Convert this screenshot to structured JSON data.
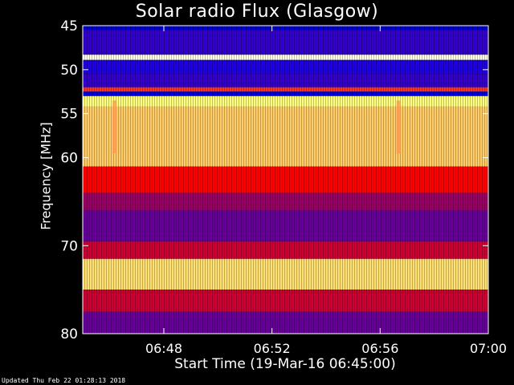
{
  "chart_data": {
    "type": "heatmap",
    "title": "Solar radio Flux (Glasgow)",
    "ylabel": "Frequency [MHz]",
    "xlabel": "Start Time (19-Mar-16 06:45:00)",
    "footer": "Updated Thu Feb 22 01:28:13 2018",
    "x_range": [
      "06:45",
      "07:00"
    ],
    "y_range": [
      45,
      80
    ],
    "y_reversed": true,
    "x_ticks": [
      "06:48",
      "06:52",
      "06:56",
      "07:00"
    ],
    "y_ticks": [
      45,
      50,
      55,
      60,
      70,
      80
    ],
    "colormap": [
      "#000080",
      "#0000ff",
      "#ff0000",
      "#ffff80",
      "#ffffff"
    ],
    "bands": [
      {
        "from": 45.0,
        "to": 45.5,
        "level": 0.15
      },
      {
        "from": 45.5,
        "to": 48.3,
        "level": 0.3
      },
      {
        "from": 48.3,
        "to": 48.9,
        "level": 0.95
      },
      {
        "from": 48.9,
        "to": 50.5,
        "level": 0.28
      },
      {
        "from": 50.5,
        "to": 52.0,
        "level": 0.3
      },
      {
        "from": 52.0,
        "to": 52.5,
        "level": 0.55
      },
      {
        "from": 52.5,
        "to": 53.0,
        "level": 0.2
      },
      {
        "from": 53.0,
        "to": 54.2,
        "level": 0.75
      },
      {
        "from": 54.2,
        "to": 61.0,
        "level": 0.7
      },
      {
        "from": 61.0,
        "to": 64.0,
        "level": 0.5
      },
      {
        "from": 64.0,
        "to": 66.0,
        "level": 0.4
      },
      {
        "from": 66.0,
        "to": 69.5,
        "level": 0.35
      },
      {
        "from": 69.5,
        "to": 71.5,
        "level": 0.45
      },
      {
        "from": 71.5,
        "to": 75.0,
        "level": 0.72
      },
      {
        "from": 75.0,
        "to": 77.5,
        "level": 0.45
      },
      {
        "from": 77.5,
        "to": 80.0,
        "level": 0.35
      }
    ],
    "spike_times": [
      "06:46:10",
      "06:56:40"
    ]
  }
}
